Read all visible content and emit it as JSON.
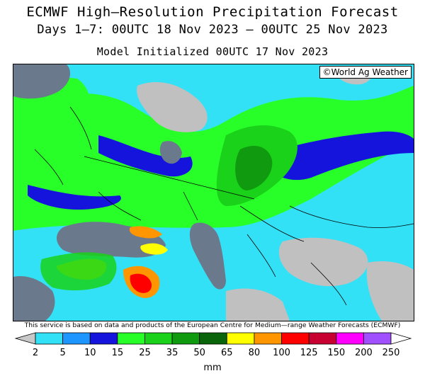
{
  "title_line1": "ECMWF High—Resolution Precipitation Forecast",
  "title_line2": "Days 1–7: 00UTC 18 Nov 2023 — 00UTC 25 Nov 2023",
  "title_line3": "Model Initialized 00UTC 17 Nov 2023",
  "credit": "©World Ag Weather",
  "disclaimer": "This service is based on data and products of the European Centre for Medium—range Weather Forecasts (ECMWF)",
  "legend": {
    "unit": "mm",
    "thresholds": [
      "2",
      "5",
      "10",
      "15",
      "25",
      "35",
      "50",
      "65",
      "80",
      "100",
      "125",
      "150",
      "200",
      "250"
    ],
    "colors": [
      "#c8c8c8",
      "#33e1f6",
      "#1e96ff",
      "#1414dc",
      "#28ff28",
      "#19d219",
      "#0f9a0f",
      "#0a640a",
      "#ffff00",
      "#ff9600",
      "#ff0000",
      "#c80032",
      "#ff00ff",
      "#a050ff",
      "#ffffff"
    ]
  },
  "map_colors": {
    "water": "#6a7a8c",
    "land_dry": "#c0c0c0",
    "border": "#000000"
  }
}
